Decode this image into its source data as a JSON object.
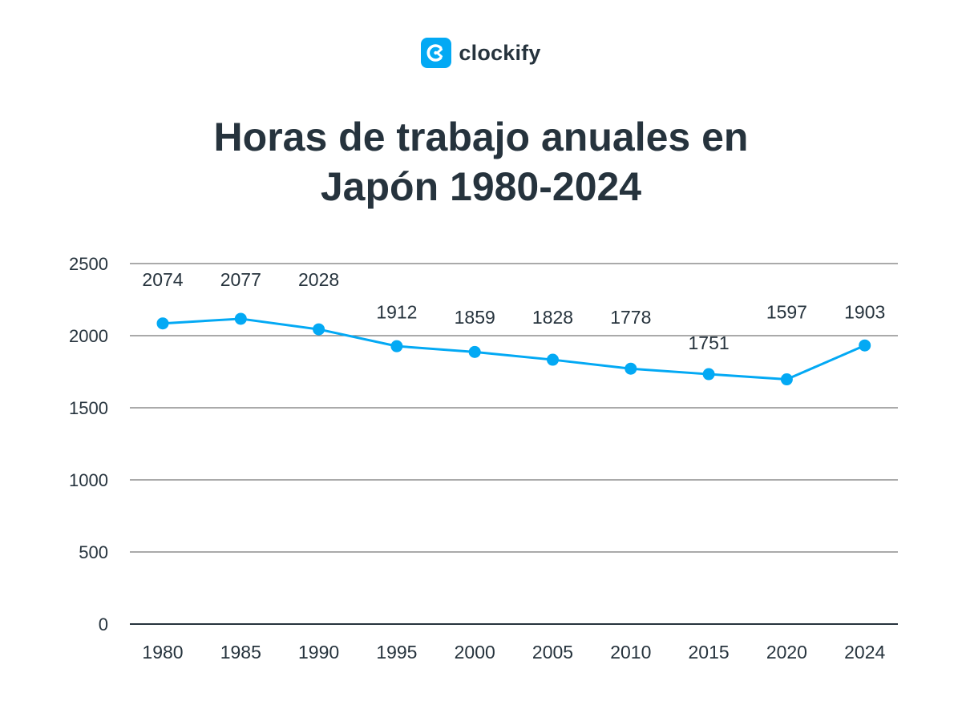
{
  "brand": {
    "name": "clockify",
    "color": "#03a9f4",
    "icon": "clockify-logo-icon"
  },
  "title": {
    "line1": "Horas de trabajo anuales en",
    "line2": "Japón 1980-2024"
  },
  "colors": {
    "line": "#03a9f4",
    "text": "#26333d",
    "grid": "#777777",
    "axis": "#26333d"
  },
  "chart_data": {
    "type": "line",
    "title": "Horas de trabajo anuales en Japón 1980-2024",
    "xlabel": "",
    "ylabel": "",
    "categories": [
      "1980",
      "1985",
      "1990",
      "1995",
      "2000",
      "2005",
      "2010",
      "2015",
      "2020",
      "2024"
    ],
    "series": [
      {
        "values": [
          2074,
          2077,
          2028,
          1912,
          1859,
          1828,
          1778,
          1751,
          1597,
          1903
        ]
      }
    ],
    "point_values": [
      2085,
      2117,
      2044,
      1927,
      1887,
      1833,
      1771,
      1733,
      1697,
      1932
    ],
    "data_labels": [
      "2074",
      "2077",
      "2028",
      "1912",
      "1859",
      "1828",
      "1778",
      "1751",
      "1597",
      "1903"
    ],
    "label_values": [
      2345,
      2345,
      2345,
      2120,
      2083,
      2083,
      2083,
      1905,
      2120,
      2120
    ],
    "yticks": [
      0,
      500,
      1000,
      1500,
      2000,
      2500
    ],
    "ylim": [
      0,
      2500
    ],
    "grid": true,
    "legend": "none"
  }
}
